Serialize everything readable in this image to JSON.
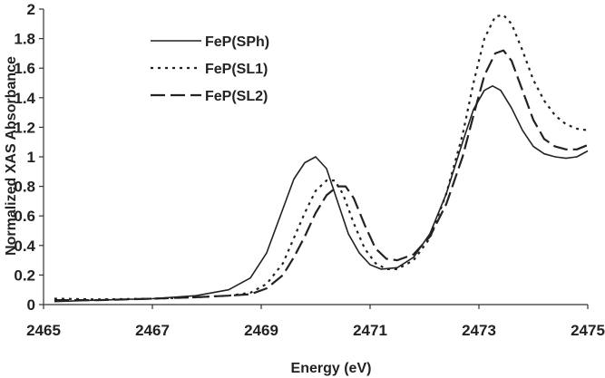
{
  "chart_data": {
    "type": "line",
    "title": "",
    "xlabel": "Energy (eV)",
    "ylabel": "Normalized XAS Absorbance",
    "xlim": [
      2465,
      2475
    ],
    "ylim": [
      0,
      2
    ],
    "xticks": [
      "2465",
      "2467",
      "2469",
      "2471",
      "2473",
      "2475"
    ],
    "xtick_values": [
      2465,
      2467,
      2469,
      2471,
      2473,
      2475
    ],
    "yticks": [
      "0",
      "0.2",
      "0.4",
      "0.6",
      "0.8",
      "1",
      "1.2",
      "1.4",
      "1.6",
      "1.8",
      "2"
    ],
    "ytick_values": [
      0,
      0.2,
      0.4,
      0.6,
      0.8,
      1,
      1.2,
      1.4,
      1.6,
      1.8,
      2
    ],
    "grid": false,
    "legend_position": "top-left",
    "series": [
      {
        "name": "FeP(SPh)",
        "style": "solid",
        "color": "#222222",
        "x": [
          2465.2,
          2466.0,
          2467.0,
          2467.8,
          2468.4,
          2468.8,
          2469.1,
          2469.4,
          2469.6,
          2469.8,
          2470.0,
          2470.2,
          2470.4,
          2470.6,
          2470.8,
          2471.0,
          2471.2,
          2471.5,
          2471.8,
          2472.1,
          2472.4,
          2472.7,
          2472.9,
          2473.1,
          2473.25,
          2473.4,
          2473.6,
          2473.8,
          2474.0,
          2474.2,
          2474.4,
          2474.6,
          2474.8,
          2475.0
        ],
        "y": [
          0.02,
          0.03,
          0.04,
          0.06,
          0.1,
          0.18,
          0.35,
          0.65,
          0.85,
          0.96,
          1.0,
          0.92,
          0.7,
          0.48,
          0.35,
          0.27,
          0.24,
          0.25,
          0.32,
          0.48,
          0.75,
          1.1,
          1.32,
          1.45,
          1.48,
          1.45,
          1.33,
          1.18,
          1.07,
          1.02,
          1.0,
          0.99,
          1.0,
          1.04
        ]
      },
      {
        "name": "FeP(SL1)",
        "style": "dotted",
        "color": "#222222",
        "x": [
          2465.2,
          2466.0,
          2467.0,
          2467.8,
          2468.4,
          2468.8,
          2469.1,
          2469.4,
          2469.6,
          2469.8,
          2470.0,
          2470.2,
          2470.35,
          2470.5,
          2470.7,
          2470.9,
          2471.1,
          2471.3,
          2471.5,
          2471.8,
          2472.1,
          2472.4,
          2472.7,
          2472.9,
          2473.1,
          2473.3,
          2473.45,
          2473.6,
          2473.8,
          2474.0,
          2474.2,
          2474.4,
          2474.6,
          2474.8,
          2475.0
        ],
        "y": [
          0.04,
          0.035,
          0.04,
          0.05,
          0.06,
          0.08,
          0.14,
          0.28,
          0.45,
          0.62,
          0.77,
          0.84,
          0.84,
          0.75,
          0.55,
          0.38,
          0.28,
          0.24,
          0.24,
          0.3,
          0.45,
          0.75,
          1.15,
          1.5,
          1.8,
          1.95,
          1.96,
          1.9,
          1.72,
          1.52,
          1.38,
          1.28,
          1.22,
          1.19,
          1.18
        ]
      },
      {
        "name": "FeP(SL2)",
        "style": "dashed",
        "color": "#222222",
        "x": [
          2465.2,
          2466.0,
          2467.0,
          2467.8,
          2468.4,
          2468.8,
          2469.1,
          2469.4,
          2469.6,
          2469.8,
          2470.0,
          2470.2,
          2470.4,
          2470.55,
          2470.7,
          2470.9,
          2471.1,
          2471.3,
          2471.5,
          2471.8,
          2472.1,
          2472.4,
          2472.7,
          2472.9,
          2473.1,
          2473.3,
          2473.45,
          2473.6,
          2473.8,
          2474.0,
          2474.2,
          2474.4,
          2474.6,
          2474.8,
          2475.0
        ],
        "y": [
          0.03,
          0.03,
          0.04,
          0.05,
          0.06,
          0.07,
          0.11,
          0.2,
          0.32,
          0.46,
          0.62,
          0.74,
          0.8,
          0.8,
          0.72,
          0.54,
          0.38,
          0.31,
          0.3,
          0.34,
          0.46,
          0.68,
          1.0,
          1.28,
          1.55,
          1.7,
          1.72,
          1.65,
          1.45,
          1.25,
          1.12,
          1.07,
          1.05,
          1.05,
          1.08
        ]
      }
    ]
  }
}
